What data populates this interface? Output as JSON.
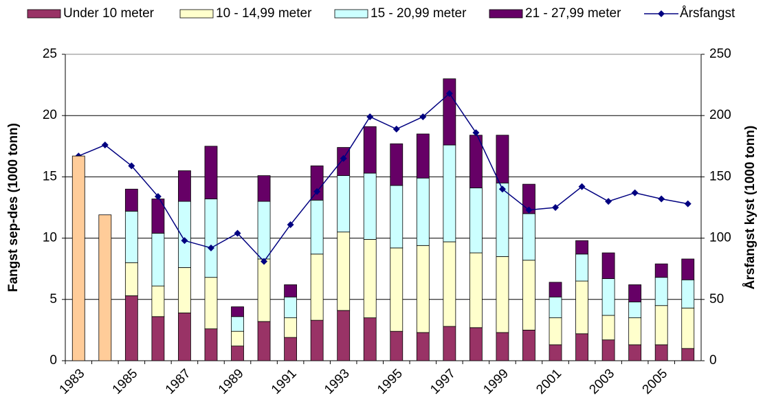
{
  "chart_data": {
    "type": "bar",
    "categories": [
      "1983",
      null,
      "1985",
      null,
      "1987",
      null,
      "1989",
      null,
      "1991",
      null,
      "1993",
      null,
      "1995",
      null,
      "1997",
      null,
      "1999",
      null,
      "2001",
      null,
      "2003",
      null,
      "2005",
      null
    ],
    "series": [
      {
        "name": "Under 10 meter",
        "color": "#993366",
        "values": [
          null,
          null,
          5.3,
          3.6,
          3.9,
          2.6,
          1.2,
          3.2,
          1.9,
          3.3,
          4.1,
          3.5,
          2.4,
          2.3,
          2.8,
          2.7,
          2.3,
          2.5,
          1.3,
          2.2,
          1.7,
          1.3,
          1.3,
          1.0
        ]
      },
      {
        "name": "10 - 14,99 meter",
        "color": "#FFFFCC",
        "values": [
          null,
          null,
          2.7,
          2.5,
          3.7,
          4.2,
          1.2,
          5.1,
          1.6,
          5.4,
          6.4,
          6.4,
          6.8,
          7.1,
          6.9,
          6.1,
          6.2,
          5.7,
          2.2,
          4.3,
          2.0,
          2.2,
          3.2,
          3.3
        ]
      },
      {
        "name": "15 - 20,99 meter",
        "color": "#CCFFFF",
        "values": [
          null,
          null,
          4.2,
          4.3,
          5.4,
          6.4,
          1.2,
          4.7,
          1.7,
          4.4,
          4.6,
          5.4,
          5.1,
          5.5,
          7.9,
          5.3,
          6.0,
          3.8,
          1.7,
          2.2,
          3.0,
          1.3,
          2.3,
          2.3
        ]
      },
      {
        "name": "21 - 27,99 meter",
        "color": "#660066",
        "values": [
          null,
          null,
          1.8,
          2.8,
          2.5,
          4.3,
          0.8,
          2.1,
          1.0,
          2.8,
          2.3,
          3.8,
          3.4,
          3.6,
          5.4,
          4.3,
          3.9,
          2.4,
          1.2,
          1.1,
          2.1,
          1.4,
          1.1,
          1.7
        ]
      },
      {
        "name": "Årsfangst",
        "color": "#000080",
        "type": "line",
        "axis": "y2",
        "values": [
          167,
          176,
          159,
          134,
          98,
          92,
          104,
          81,
          111,
          138,
          165,
          199,
          189,
          199,
          218,
          186,
          140,
          123,
          125,
          142,
          130,
          137,
          132,
          128
        ]
      },
      {
        "color": "#FFCC99",
        "values": [
          16.7,
          11.9,
          null,
          null,
          null,
          null,
          null,
          null,
          null,
          null,
          null,
          null,
          null,
          null,
          null,
          null,
          null,
          null,
          null,
          null,
          null,
          null,
          null,
          null
        ]
      }
    ],
    "ylabel": "Fangst sep-des (1000 tonn)",
    "y2label": "Årsfangst kyst (1000 tonn)",
    "ylim": [
      0,
      25
    ],
    "yticks": [
      0,
      5,
      10,
      15,
      20,
      25
    ],
    "y2lim": [
      0,
      250
    ],
    "y2ticks": [
      0,
      50,
      100,
      150,
      200,
      250
    ],
    "grid": true,
    "legend": "top"
  }
}
